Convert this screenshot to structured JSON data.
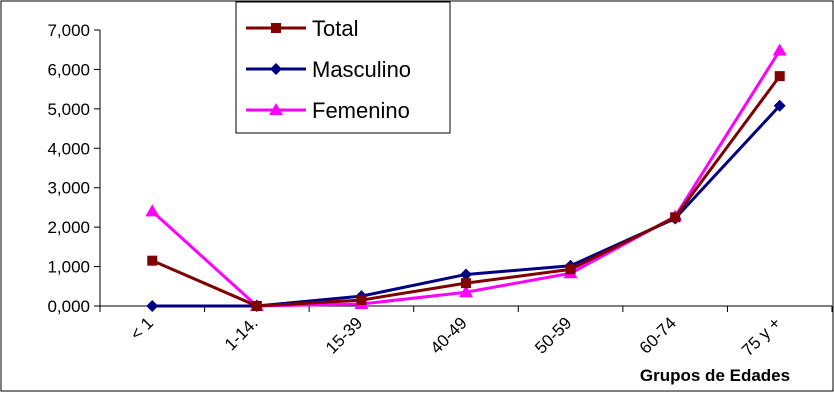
{
  "chart_data": {
    "type": "line",
    "categories": [
      "< 1",
      "1-14.",
      "15-39",
      "40-49",
      "50-59",
      "60-74",
      "75 y +"
    ],
    "series": [
      {
        "name": "Total",
        "values": [
          1150,
          0,
          150,
          580,
          930,
          2250,
          5830
        ],
        "color": "#800000",
        "marker": "square"
      },
      {
        "name": "Masculino",
        "values": [
          0,
          0,
          250,
          800,
          1020,
          2220,
          5080
        ],
        "color": "#000080",
        "marker": "diamond"
      },
      {
        "name": "Femenino",
        "values": [
          2400,
          0,
          50,
          350,
          830,
          2270,
          6480
        ],
        "color": "#ff00ff",
        "marker": "triangle"
      }
    ],
    "yticks": [
      "0,000",
      "1,000",
      "2,000",
      "3,000",
      "4,000",
      "5,000",
      "6,000",
      "7,000"
    ],
    "ylim": [
      0,
      7000
    ],
    "xlabel": "Grupos de Edades",
    "ylabel": "",
    "title": "",
    "grid": false,
    "legend_position": "top-center"
  }
}
